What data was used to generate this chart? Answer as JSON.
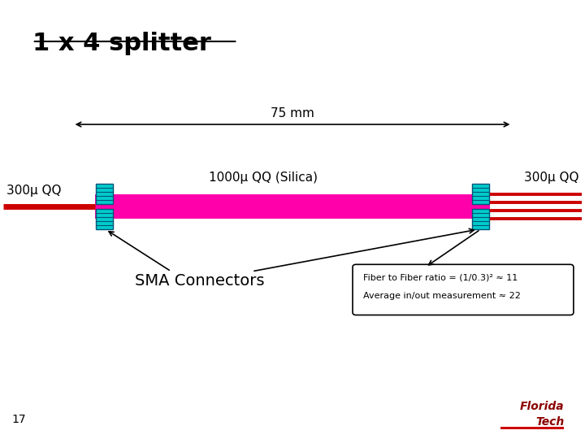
{
  "title": "1 x 4 splitter",
  "title_fontsize": 22,
  "bg_color": "#ffffff",
  "fiber_color_magenta": "#FF00AA",
  "fiber_color_red": "#CC0000",
  "connector_color": "#00CCCC",
  "connector_edge": "#005577",
  "dim_label": "75 mm",
  "label_1000": "1000μ QQ (Silica)",
  "label_300_left": "300μ QQ",
  "label_300_right": "300μ QQ",
  "sma_label": "SMA Connectors",
  "box_line1": "Fiber to Fiber ratio = (1/0.3)² ≈ 11",
  "box_line2": "Average in/out measurement ≈ 22",
  "slide_number": "17"
}
